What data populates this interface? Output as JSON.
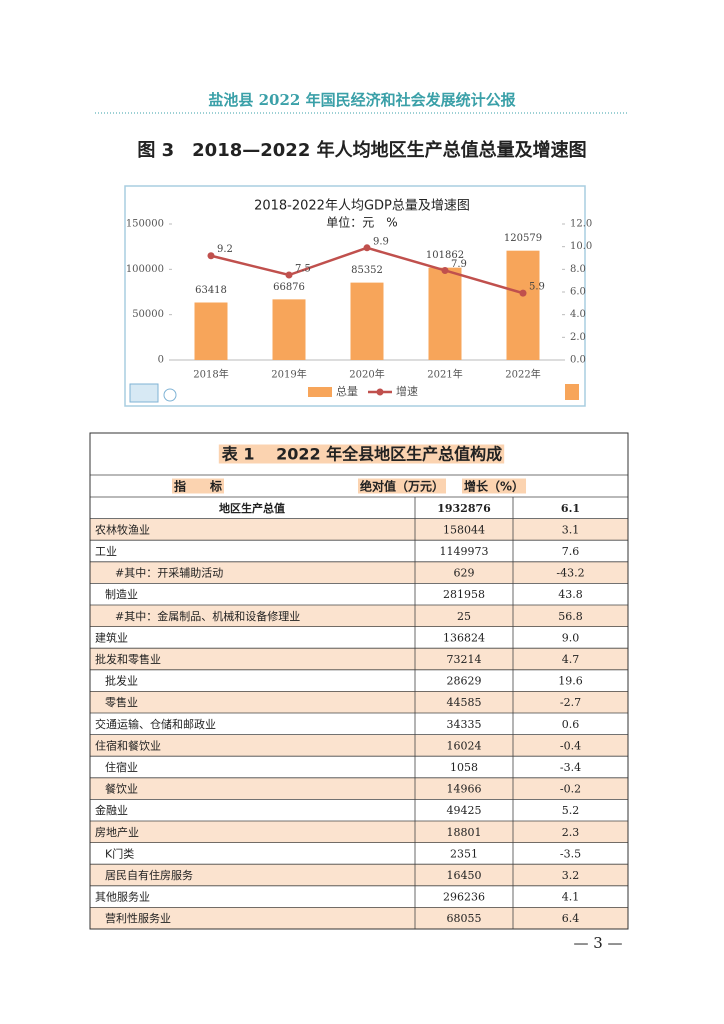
{
  "header": {
    "title": "盐池县 2022 年国民经济和社会发展统计公报"
  },
  "figure": {
    "caption": "图 3　2018—2022 年人均地区生产总值总量及增速图"
  },
  "chart_data": {
    "type": "bar",
    "title": "2018-2022年人均GDP总量及增速图",
    "subtitle": "单位：元　%",
    "categories": [
      "2018年",
      "2019年",
      "2020年",
      "2021年",
      "2022年"
    ],
    "series": [
      {
        "name": "总量",
        "color": "#f7a55a",
        "values": [
          63418,
          66876,
          85352,
          101862,
          120579
        ]
      },
      {
        "name": "增速",
        "color": "#c0504d",
        "values": [
          9.2,
          7.5,
          9.9,
          7.9,
          5.9
        ],
        "axis": "y2",
        "type": "line"
      }
    ],
    "ylim": [
      0,
      150000
    ],
    "yticks": [
      0,
      50000,
      100000,
      150000
    ],
    "y2lim": [
      0,
      12
    ],
    "y2ticks": [
      {
        "value": 0,
        "label": "0.0"
      },
      {
        "value": 2,
        "label": "2.0"
      },
      {
        "value": 4,
        "label": "4.0"
      },
      {
        "value": 6,
        "label": "6.0"
      },
      {
        "value": 8,
        "label": "8.0"
      },
      {
        "value": 10,
        "label": "10.0"
      },
      {
        "value": 12,
        "label": "12.0"
      }
    ],
    "legend": "bottom"
  },
  "table": {
    "title": "表 1　 2022 年全县地区生产总值构成",
    "header": [
      "指　　标",
      "绝对值（万元）",
      "增长（%）"
    ],
    "rows": [
      [
        "地区生产总值",
        "1932876",
        "6.1"
      ],
      [
        "农林牧渔业",
        "158044",
        "3.1"
      ],
      [
        "工业",
        "1149973",
        "7.6"
      ],
      [
        "#其中：开采辅助活动",
        "629",
        "-43.2"
      ],
      [
        "制造业",
        "281958",
        "43.8"
      ],
      [
        "#其中：金属制品、机械和设备修理业",
        "25",
        "56.8"
      ],
      [
        "建筑业",
        "136824",
        "9.0"
      ],
      [
        "批发和零售业",
        "73214",
        "4.7"
      ],
      [
        "批发业",
        "28629",
        "19.6"
      ],
      [
        "零售业",
        "44585",
        "-2.7"
      ],
      [
        "交通运输、仓储和邮政业",
        "34335",
        "0.6"
      ],
      [
        "住宿和餐饮业",
        "16024",
        "-0.4"
      ],
      [
        "住宿业",
        "1058",
        "-3.4"
      ],
      [
        "餐饮业",
        "14966",
        "-0.2"
      ],
      [
        "金融业",
        "49425",
        "5.2"
      ],
      [
        "房地产业",
        "18801",
        "2.3"
      ],
      [
        "K门类",
        "2351",
        "-3.5"
      ],
      [
        "居民自有住房服务",
        "16450",
        "3.2"
      ],
      [
        "其他服务业",
        "296236",
        "4.1"
      ],
      [
        "营利性服务业",
        "68055",
        "6.4"
      ]
    ]
  },
  "footer": {
    "page": "— 3 —"
  }
}
